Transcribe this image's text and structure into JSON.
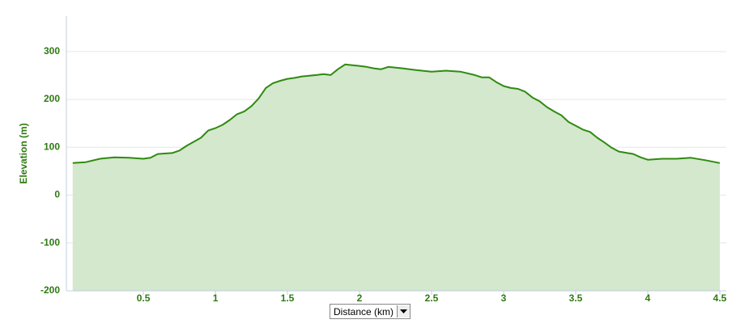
{
  "chart_data": {
    "type": "area",
    "ylabel": "Elevation (m)",
    "xlabel": "Distance (km)",
    "x": [
      0.01,
      0.1,
      0.2,
      0.3,
      0.4,
      0.5,
      0.55,
      0.6,
      0.7,
      0.75,
      0.8,
      0.9,
      0.95,
      1.0,
      1.05,
      1.1,
      1.15,
      1.2,
      1.25,
      1.3,
      1.35,
      1.4,
      1.45,
      1.5,
      1.55,
      1.6,
      1.7,
      1.75,
      1.8,
      1.85,
      1.9,
      2.0,
      2.05,
      2.1,
      2.15,
      2.2,
      2.3,
      2.4,
      2.5,
      2.6,
      2.7,
      2.8,
      2.85,
      2.9,
      2.95,
      3.0,
      3.05,
      3.1,
      3.15,
      3.2,
      3.25,
      3.3,
      3.35,
      3.4,
      3.45,
      3.5,
      3.55,
      3.6,
      3.65,
      3.7,
      3.75,
      3.8,
      3.9,
      3.95,
      4.0,
      4.1,
      4.2,
      4.3,
      4.4,
      4.5
    ],
    "values": [
      67,
      69,
      76,
      79,
      78,
      76,
      78,
      86,
      88,
      93,
      103,
      120,
      135,
      140,
      147,
      157,
      169,
      175,
      186,
      202,
      224,
      234,
      239,
      243,
      245,
      248,
      251,
      253,
      251,
      263,
      273,
      270,
      268,
      265,
      263,
      268,
      265,
      261,
      258,
      260,
      258,
      251,
      246,
      246,
      236,
      228,
      224,
      222,
      216,
      204,
      196,
      184,
      175,
      167,
      153,
      145,
      137,
      132,
      120,
      110,
      99,
      91,
      86,
      79,
      74,
      76,
      76,
      78,
      73,
      67
    ],
    "color": "#2f8a10",
    "fill_color": "#d3e8cc",
    "xlim": [
      -0.034,
      4.545
    ],
    "ylim": [
      -200,
      374
    ],
    "xticks": [
      0.5,
      1,
      1.5,
      2,
      2.5,
      3,
      3.5,
      4,
      4.5
    ],
    "yticks": [
      -200,
      -100,
      0,
      100,
      200,
      300
    ],
    "grid": true
  }
}
